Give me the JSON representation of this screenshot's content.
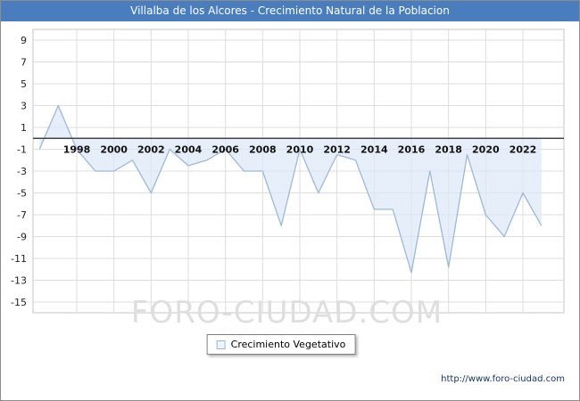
{
  "header": {
    "title": "Villalba de los Alcores - Crecimiento Natural de la Poblacion"
  },
  "watermark": "FORO-CIUDAD.COM",
  "legend": {
    "label": "Crecimiento Vegetativo"
  },
  "footer": {
    "url": "http://www.foro-ciudad.com"
  },
  "chart_data": {
    "type": "area",
    "title": "Villalba de los Alcores - Crecimiento Natural de la Poblacion",
    "xlabel": "",
    "ylabel": "",
    "grid": true,
    "legend_position": "bottom",
    "x": [
      1996,
      1997,
      1998,
      1999,
      2000,
      2001,
      2002,
      2003,
      2004,
      2005,
      2006,
      2007,
      2008,
      2009,
      2010,
      2011,
      2012,
      2013,
      2014,
      2015,
      2016,
      2017,
      2018,
      2019,
      2020,
      2021,
      2022,
      2023
    ],
    "series": [
      {
        "name": "Crecimiento Vegetativo",
        "values": [
          -1,
          3,
          -1,
          -3,
          -3,
          -2,
          -5,
          -1,
          -2.5,
          -2,
          -1,
          -3,
          -3,
          -8,
          -1,
          -5,
          -1.5,
          -2,
          -6.5,
          -6.5,
          -12.3,
          -3,
          -11.8,
          -1.5,
          -7,
          -9,
          -5,
          -8
        ]
      }
    ],
    "y_ticks": [
      9,
      7,
      5,
      3,
      1,
      -1,
      -3,
      -5,
      -7,
      -9,
      -11,
      -13,
      -15
    ],
    "x_ticks": [
      1998,
      2000,
      2002,
      2004,
      2006,
      2008,
      2010,
      2012,
      2014,
      2016,
      2018,
      2020,
      2022
    ],
    "ylim": [
      -16,
      10
    ],
    "colors": {
      "titlebar": "#4a7dbd",
      "line": "#9cb8d8",
      "fill": "#dce8f6",
      "grid": "#dcdcdc",
      "axis": "#444444",
      "plot_border": "#c6c6c6"
    }
  }
}
